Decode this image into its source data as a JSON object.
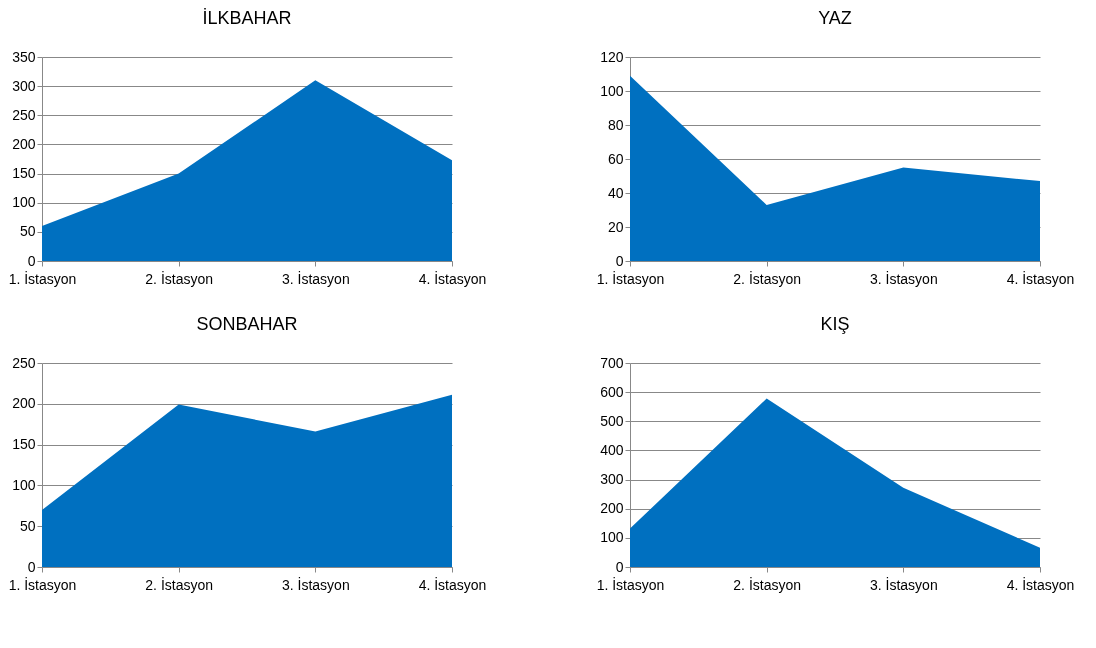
{
  "chart_data": [
    {
      "type": "area",
      "title": "İLKBAHAR",
      "categories": [
        "1. İstasyon",
        "2. İstasyon",
        "3. İstasyon",
        "4. İstasyon"
      ],
      "values": [
        60,
        150,
        310,
        173
      ],
      "color": "#0070c0",
      "ylim": [
        0,
        350
      ],
      "yticks": [
        0,
        50,
        100,
        150,
        200,
        250,
        300,
        350
      ],
      "grid": "y"
    },
    {
      "type": "area",
      "title": "YAZ",
      "categories": [
        "1. İstasyon",
        "2. İstasyon",
        "3. İstasyon",
        "4. İstasyon"
      ],
      "values": [
        109,
        33,
        55,
        47
      ],
      "color": "#0070c0",
      "ylim": [
        0,
        120
      ],
      "yticks": [
        0,
        20,
        40,
        60,
        80,
        100,
        120
      ],
      "grid": "y"
    },
    {
      "type": "area",
      "title": "SONBAHAR",
      "categories": [
        "1. İstasyon",
        "2. İstasyon",
        "3. İstasyon",
        "4. İstasyon"
      ],
      "values": [
        70,
        199,
        166,
        211
      ],
      "color": "#0070c0",
      "ylim": [
        0,
        250
      ],
      "yticks": [
        0,
        50,
        100,
        150,
        200,
        250
      ],
      "grid": "y"
    },
    {
      "type": "area",
      "title": "KIŞ",
      "categories": [
        "1. İstasyon",
        "2. İstasyon",
        "3. İstasyon",
        "4. İstasyon"
      ],
      "values": [
        132,
        578,
        272,
        66
      ],
      "color": "#0070c0",
      "ylim": [
        0,
        700
      ],
      "yticks": [
        0,
        100,
        200,
        300,
        400,
        500,
        600,
        700
      ],
      "grid": "y"
    }
  ]
}
